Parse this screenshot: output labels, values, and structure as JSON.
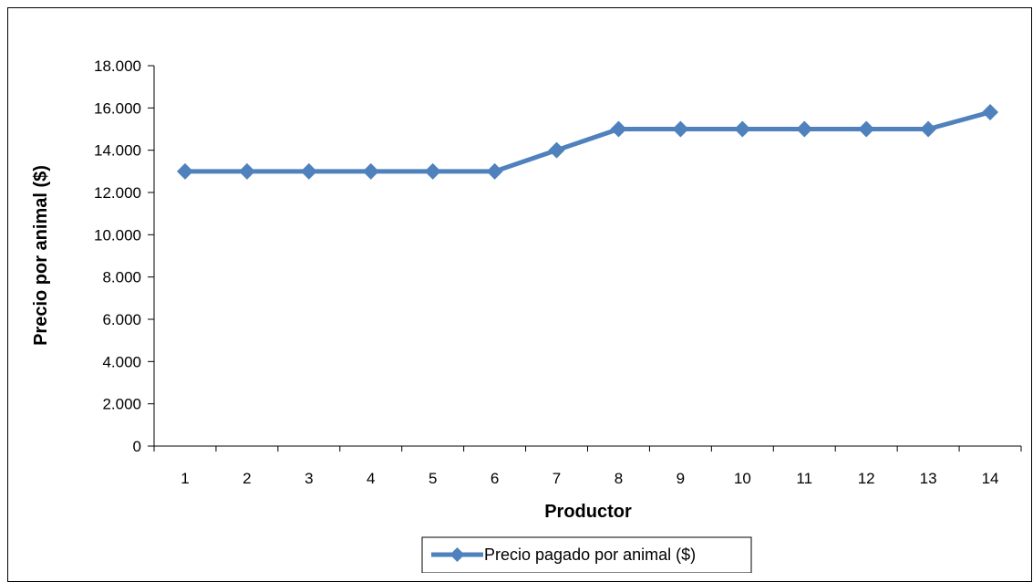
{
  "chart_data": {
    "type": "line",
    "title": "",
    "xlabel": "Productor",
    "ylabel": "Precio por animal ($)",
    "categories": [
      "1",
      "2",
      "3",
      "4",
      "5",
      "6",
      "7",
      "8",
      "9",
      "10",
      "11",
      "12",
      "13",
      "14"
    ],
    "ylim": [
      0,
      18000
    ],
    "yticks": [
      0,
      2000,
      4000,
      6000,
      8000,
      10000,
      12000,
      14000,
      16000,
      18000
    ],
    "ytick_labels": [
      "0",
      "2.000",
      "4.000",
      "6.000",
      "8.000",
      "10.000",
      "12.000",
      "14.000",
      "16.000",
      "18.000"
    ],
    "grid": false,
    "legend_position": "bottom",
    "series": [
      {
        "name": "Precio pagado por animal ($)",
        "color": "#4F81BD",
        "marker": "diamond",
        "values": [
          13000,
          13000,
          13000,
          13000,
          13000,
          13000,
          14000,
          15000,
          15000,
          15000,
          15000,
          15000,
          15000,
          15800
        ]
      }
    ]
  }
}
